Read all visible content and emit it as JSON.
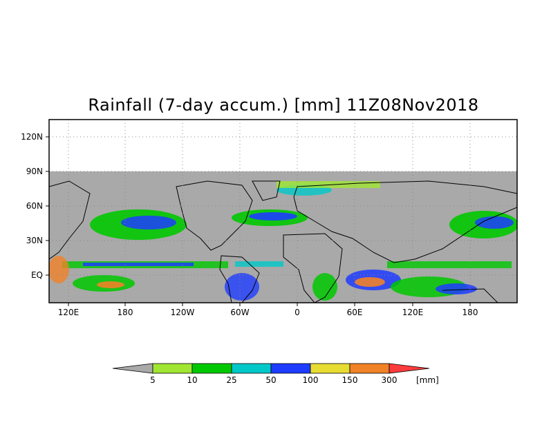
{
  "title": "Rainfall (7-day accum.) [mm] 11Z08Nov2018",
  "map": {
    "lat_labels": [
      "120N",
      "90N",
      "60N",
      "30N",
      "EQ"
    ],
    "lon_labels": [
      "120E",
      "180",
      "120W",
      "60W",
      "0",
      "60E",
      "120E",
      "180"
    ],
    "background_color": "#a9a9a9",
    "grid": "dotted"
  },
  "colorbar": {
    "levels": [
      "5",
      "10",
      "25",
      "50",
      "100",
      "150",
      "300"
    ],
    "unit": "[mm]",
    "colors": [
      "#a9a9a9",
      "#a0e632",
      "#00c800",
      "#00c8c8",
      "#1e3cff",
      "#e6dc32",
      "#f08228",
      "#fa3c3c"
    ]
  }
}
